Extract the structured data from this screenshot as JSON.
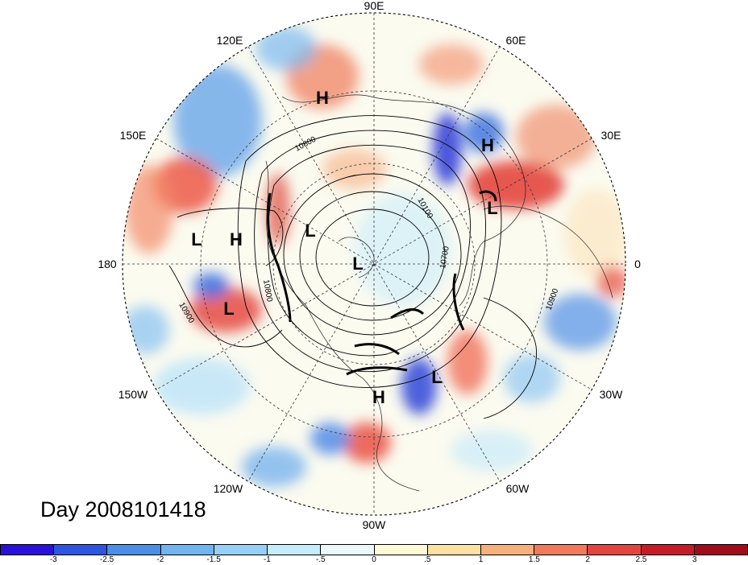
{
  "map": {
    "projection": "polar stereographic, north pole",
    "longitude_labels": [
      "90E",
      "60E",
      "30E",
      "0",
      "30W",
      "60W",
      "90W",
      "120W",
      "150W",
      "180",
      "150E",
      "120E"
    ],
    "pressure_systems": [
      {
        "type": "H",
        "region": "Mongolia"
      },
      {
        "type": "H",
        "region": "western Russia"
      },
      {
        "type": "L",
        "region": "Baltic"
      },
      {
        "type": "L",
        "region": "Siberia"
      },
      {
        "type": "L",
        "region": "polar"
      },
      {
        "type": "L",
        "region": "northwest Pacific"
      },
      {
        "type": "H",
        "region": "central Pacific"
      },
      {
        "type": "L",
        "region": "Gulf of Alaska"
      },
      {
        "type": "H",
        "region": "southeastern United States"
      },
      {
        "type": "L",
        "region": "western Atlantic"
      }
    ],
    "contour_labels": [
      "10800",
      "10100",
      "10700",
      "10900",
      "10800",
      "10900"
    ]
  },
  "title": "Day 2008101418",
  "colorbar": {
    "colors": [
      "#2a10d8",
      "#2e55e0",
      "#4a8ee8",
      "#70b4f0",
      "#96d0f8",
      "#c4ecfc",
      "#eaf8fc",
      "#fefad8",
      "#fce0a4",
      "#f7b07c",
      "#f07a5a",
      "#e44440",
      "#c61c2a",
      "#a00c1c"
    ],
    "tick_labels": [
      "-3",
      "-2.5",
      "-2",
      "-1.5",
      "-1",
      "-.5",
      "0",
      ".5",
      "1",
      "1.5",
      "2",
      "2.5",
      "3"
    ]
  }
}
